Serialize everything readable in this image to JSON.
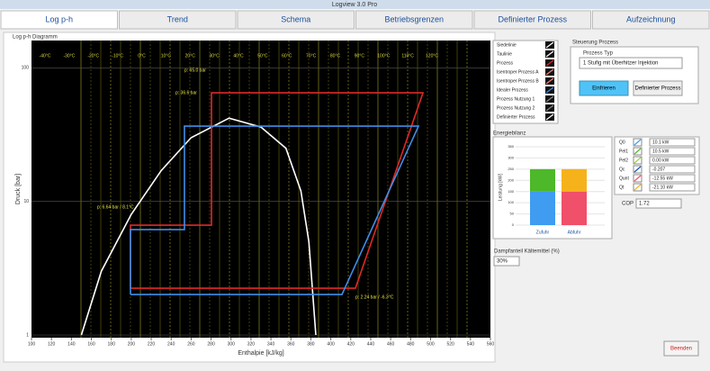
{
  "window_title": "Logview 3.0 Pro",
  "tabs": [
    "Log p-h",
    "Trend",
    "Schema",
    "Betriebsgrenzen",
    "Definierter Prozess",
    "Aufzeichnung"
  ],
  "diagram": {
    "title": "Log p-h Diagramm",
    "x_label": "Enthalpie [kJ/kg]",
    "y_label": "Druck [bar]",
    "xlim": [
      100,
      560
    ],
    "xticks": [
      100,
      120,
      140,
      160,
      180,
      200,
      220,
      240,
      260,
      280,
      300,
      320,
      340,
      360,
      380,
      400,
      420,
      440,
      460,
      480,
      500,
      520,
      540,
      560
    ],
    "ylim": [
      1,
      160
    ],
    "yticks": [
      1,
      10,
      100
    ],
    "log_y": true,
    "isotherm_labels": [
      "-40°C",
      "-30°C",
      "-20°C",
      "-10°C",
      "0°C",
      "10°C",
      "20°C",
      "30°C",
      "40°C",
      "50°C",
      "60°C",
      "70°C",
      "80°C",
      "90°C",
      "100°C",
      "110°C",
      "120°C"
    ],
    "dome": {
      "color": "#ffffff",
      "h": [
        150,
        170,
        200,
        230,
        260,
        298,
        330,
        355,
        370,
        378,
        385
      ],
      "p": [
        1,
        3,
        8,
        17,
        30,
        42,
        36,
        25,
        12,
        5,
        1
      ]
    },
    "processes": [
      {
        "color": "#e02828",
        "h": [
          199.2,
          424.7,
          492.4,
          280.4,
          280.4,
          199.2,
          199.2
        ],
        "p": [
          2.24,
          2.24,
          65.0,
          65.0,
          6.64,
          6.64,
          2.24
        ]
      },
      {
        "color": "#3f8fe8",
        "h": [
          199.2,
          411.2,
          487.9,
          253.3,
          253.3,
          199.2,
          199.2
        ],
        "p": [
          2.01,
          2.01,
          36.6,
          36.6,
          6.15,
          6.15,
          2.01
        ]
      }
    ],
    "annotations": [
      "p: 65.0 bar",
      "p: 36.6 bar",
      "p: 6.64 bar / 8.1°C",
      "p: 2.24 bar / -6.3°C"
    ]
  },
  "legend": [
    {
      "label": "Siedelinie",
      "color": "#ffffff"
    },
    {
      "label": "Taulinie",
      "color": "#ffffff"
    },
    {
      "label": "Prozess",
      "color": "#e02828"
    },
    {
      "label": "Isentroper Prozess A",
      "color": "#ff8080"
    },
    {
      "label": "Isentroper Prozess B",
      "color": "#ff8080"
    },
    {
      "label": "Idealer Prozess",
      "color": "#3f8fe8"
    },
    {
      "label": "Prozess Nutzung 1",
      "color": "#888888"
    },
    {
      "label": "Prozess Nutzung 2",
      "color": "#888888"
    },
    {
      "label": "Definierter Prozess",
      "color": "#ffffff"
    }
  ],
  "control": {
    "title": "Steuerung Prozess",
    "type_label": "Prozess Typ",
    "type_value": "1 Stufig mit Überhitzer Injektion",
    "button_freeze": "Einfrieren",
    "button_defined": "Definierter Prozess"
  },
  "energy": {
    "title": "Energiebilanz",
    "y_label": "Leistung [kW]",
    "ylim": [
      0,
      350
    ],
    "yticks": [
      0,
      50,
      100,
      150,
      200,
      250,
      300,
      350
    ],
    "bars": [
      {
        "category": "Zufuhr",
        "segments": [
          {
            "color": "#3f9cf0",
            "value": 150
          },
          {
            "color": "#4cb82a",
            "value": 100
          }
        ]
      },
      {
        "category": "Abfuhr",
        "segments": [
          {
            "color": "#f0506a",
            "value": 150
          },
          {
            "color": "#f5b21a",
            "value": 100
          }
        ]
      }
    ]
  },
  "readings": [
    {
      "label": "Q0",
      "color": "#3f9cf0",
      "value": "10.1 kW"
    },
    {
      "label": "Pel1",
      "color": "#4cb82a",
      "value": "10.5 kW"
    },
    {
      "label": "Pel2",
      "color": "#a0d040",
      "value": "0.00 kW"
    },
    {
      "label": "Qc",
      "color": "#1050c0",
      "value": "-0.207"
    },
    {
      "label": "Qunt",
      "color": "#f0506a",
      "value": "-12.55 kW"
    },
    {
      "label": "Qt",
      "color": "#f5b21a",
      "value": "-21.10 kW"
    }
  ],
  "cop": {
    "label": "COP",
    "value": "1.72"
  },
  "vapor": {
    "label": "Dampfanteil Kältemittel (%)",
    "value": "30%"
  },
  "exit_button": "Beenden"
}
